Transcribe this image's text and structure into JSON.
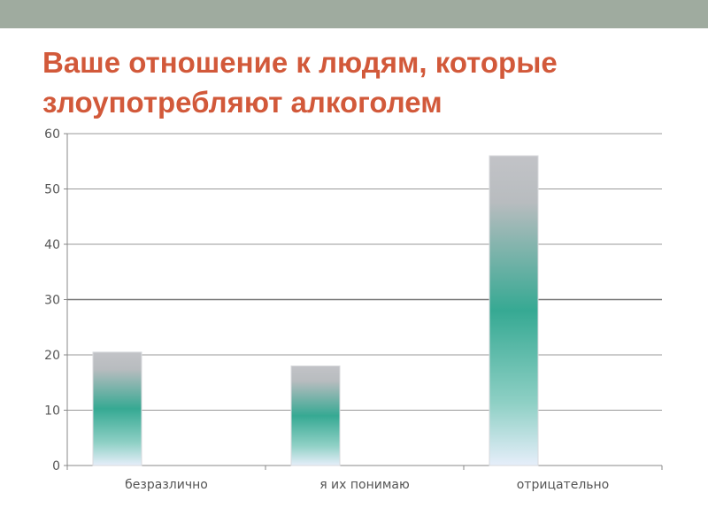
{
  "header": {
    "title": "Ваше отношение к людям, которые злоупотребляют алкоголем"
  },
  "chart_data": {
    "type": "bar",
    "title": "Ваше отношение к людям, которые злоупотребляют алкоголем",
    "categories": [
      "безразлично",
      "я их понимаю",
      "отрицательно"
    ],
    "values": [
      20.5,
      18,
      56
    ],
    "xlabel": "",
    "ylabel": "",
    "ylim": [
      0,
      60
    ],
    "yticks": [
      "0",
      "10",
      "20",
      "30",
      "40",
      "50",
      "60"
    ],
    "grid": true,
    "legend": "none",
    "colors": {
      "top": "#c0c2c6",
      "mid": "#34aa92",
      "bottom": "#e8f0fa",
      "title": "#d2593a"
    }
  }
}
